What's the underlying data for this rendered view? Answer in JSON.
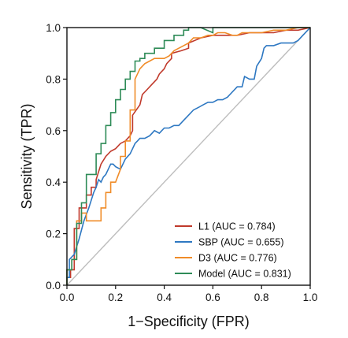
{
  "chart_data": {
    "type": "line",
    "title": "",
    "xlabel": "1−Specificity (FPR)",
    "ylabel": "Sensitivity (TPR)",
    "xlim": [
      0,
      1
    ],
    "ylim": [
      0,
      1
    ],
    "xticks": [
      "0.0",
      "0.2",
      "0.4",
      "0.6",
      "0.8",
      "1.0"
    ],
    "yticks": [
      "0.0",
      "0.2",
      "0.4",
      "0.6",
      "0.8",
      "1.0"
    ],
    "grid": false,
    "legend_position": "bottom-right",
    "reference_line": {
      "color": "#bdbdbd",
      "x": [
        0,
        1
      ],
      "y": [
        0,
        1
      ]
    },
    "series": [
      {
        "name": "L1 (AUC = 0.784)",
        "color": "#c0392b",
        "x": [
          0,
          0,
          0.015,
          0.015,
          0.03,
          0.03,
          0.05,
          0.05,
          0.08,
          0.08,
          0.1,
          0.1,
          0.12,
          0.12,
          0.14,
          0.16,
          0.18,
          0.2,
          0.22,
          0.24,
          0.26,
          0.27,
          0.27,
          0.3,
          0.31,
          0.33,
          0.35,
          0.37,
          0.38,
          0.4,
          0.41,
          0.43,
          0.43,
          0.47,
          0.5,
          0.5,
          0.55,
          0.6,
          0.65,
          0.7,
          0.75,
          0.8,
          0.85,
          0.9,
          0.95,
          1.0
        ],
        "y": [
          0,
          0.03,
          0.03,
          0.06,
          0.06,
          0.22,
          0.22,
          0.3,
          0.3,
          0.35,
          0.35,
          0.38,
          0.38,
          0.41,
          0.47,
          0.5,
          0.52,
          0.53,
          0.55,
          0.56,
          0.58,
          0.6,
          0.66,
          0.7,
          0.74,
          0.76,
          0.78,
          0.8,
          0.82,
          0.84,
          0.86,
          0.88,
          0.9,
          0.91,
          0.92,
          0.94,
          0.96,
          0.97,
          0.97,
          0.97,
          0.98,
          0.98,
          0.98,
          0.99,
          0.99,
          1.0
        ]
      },
      {
        "name": "SBP (AUC = 0.655)",
        "color": "#2e78c2",
        "x": [
          0,
          0,
          0.01,
          0.01,
          0.03,
          0.05,
          0.07,
          0.09,
          0.11,
          0.12,
          0.13,
          0.14,
          0.15,
          0.16,
          0.17,
          0.18,
          0.19,
          0.2,
          0.22,
          0.24,
          0.26,
          0.27,
          0.28,
          0.29,
          0.3,
          0.32,
          0.34,
          0.36,
          0.38,
          0.4,
          0.42,
          0.44,
          0.46,
          0.48,
          0.5,
          0.52,
          0.54,
          0.56,
          0.58,
          0.6,
          0.62,
          0.64,
          0.66,
          0.67,
          0.7,
          0.72,
          0.73,
          0.75,
          0.77,
          0.78,
          0.8,
          0.81,
          0.82,
          0.85,
          0.88,
          0.91,
          0.93,
          0.95,
          0.97,
          1.0
        ],
        "y": [
          0,
          0.03,
          0.03,
          0.1,
          0.12,
          0.18,
          0.25,
          0.3,
          0.36,
          0.38,
          0.41,
          0.4,
          0.42,
          0.43,
          0.45,
          0.47,
          0.47,
          0.46,
          0.45,
          0.49,
          0.51,
          0.53,
          0.55,
          0.56,
          0.57,
          0.57,
          0.58,
          0.6,
          0.59,
          0.61,
          0.61,
          0.62,
          0.62,
          0.64,
          0.66,
          0.68,
          0.69,
          0.7,
          0.71,
          0.71,
          0.72,
          0.72,
          0.73,
          0.74,
          0.77,
          0.77,
          0.81,
          0.8,
          0.8,
          0.85,
          0.88,
          0.92,
          0.93,
          0.93,
          0.94,
          0.94,
          0.94,
          0.95,
          0.97,
          1.0
        ]
      },
      {
        "name": "D3 (AUC = 0.776)",
        "color": "#f08c28",
        "x": [
          0,
          0,
          0.02,
          0.02,
          0.04,
          0.04,
          0.06,
          0.06,
          0.08,
          0.08,
          0.14,
          0.14,
          0.16,
          0.16,
          0.18,
          0.18,
          0.2,
          0.22,
          0.22,
          0.24,
          0.24,
          0.26,
          0.26,
          0.28,
          0.28,
          0.3,
          0.32,
          0.34,
          0.36,
          0.38,
          0.4,
          0.42,
          0.44,
          0.46,
          0.48,
          0.5,
          0.52,
          0.55,
          0.58,
          0.6,
          0.62,
          0.65,
          0.68,
          0.7,
          0.72,
          0.75,
          0.8,
          0.85,
          0.9,
          0.95,
          1.0
        ],
        "y": [
          0,
          0.06,
          0.06,
          0.1,
          0.1,
          0.25,
          0.25,
          0.28,
          0.28,
          0.25,
          0.25,
          0.3,
          0.3,
          0.36,
          0.36,
          0.4,
          0.4,
          0.45,
          0.5,
          0.5,
          0.56,
          0.56,
          0.68,
          0.68,
          0.8,
          0.84,
          0.86,
          0.87,
          0.88,
          0.88,
          0.88,
          0.89,
          0.91,
          0.92,
          0.93,
          0.94,
          0.96,
          0.96,
          0.97,
          0.97,
          0.98,
          0.98,
          0.97,
          0.97,
          0.98,
          0.98,
          0.98,
          0.99,
          0.99,
          1.0,
          1.0
        ]
      },
      {
        "name": "Model (AUC = 0.831)",
        "color": "#2e8b57",
        "x": [
          0,
          0,
          0.02,
          0.02,
          0.04,
          0.04,
          0.06,
          0.06,
          0.08,
          0.08,
          0.12,
          0.12,
          0.14,
          0.14,
          0.16,
          0.16,
          0.18,
          0.18,
          0.2,
          0.2,
          0.22,
          0.22,
          0.24,
          0.24,
          0.26,
          0.26,
          0.28,
          0.28,
          0.3,
          0.3,
          0.32,
          0.32,
          0.36,
          0.36,
          0.4,
          0.4,
          0.44,
          0.44,
          0.48,
          0.48,
          0.5,
          0.5,
          0.55,
          0.6,
          0.6,
          0.65,
          0.7,
          0.7,
          0.75,
          0.8,
          0.85,
          0.9,
          0.95,
          1.0
        ],
        "y": [
          0,
          0.06,
          0.06,
          0.1,
          0.1,
          0.24,
          0.24,
          0.32,
          0.32,
          0.43,
          0.43,
          0.51,
          0.51,
          0.55,
          0.55,
          0.62,
          0.62,
          0.67,
          0.67,
          0.72,
          0.72,
          0.76,
          0.76,
          0.8,
          0.8,
          0.83,
          0.83,
          0.87,
          0.87,
          0.88,
          0.88,
          0.9,
          0.9,
          0.92,
          0.92,
          0.95,
          0.95,
          0.97,
          0.97,
          0.99,
          0.99,
          1.0,
          1.0,
          0.98,
          1.0,
          1.0,
          1.0,
          1.0,
          1.0,
          1.0,
          1.0,
          1.0,
          1.0,
          1.0
        ]
      }
    ]
  }
}
